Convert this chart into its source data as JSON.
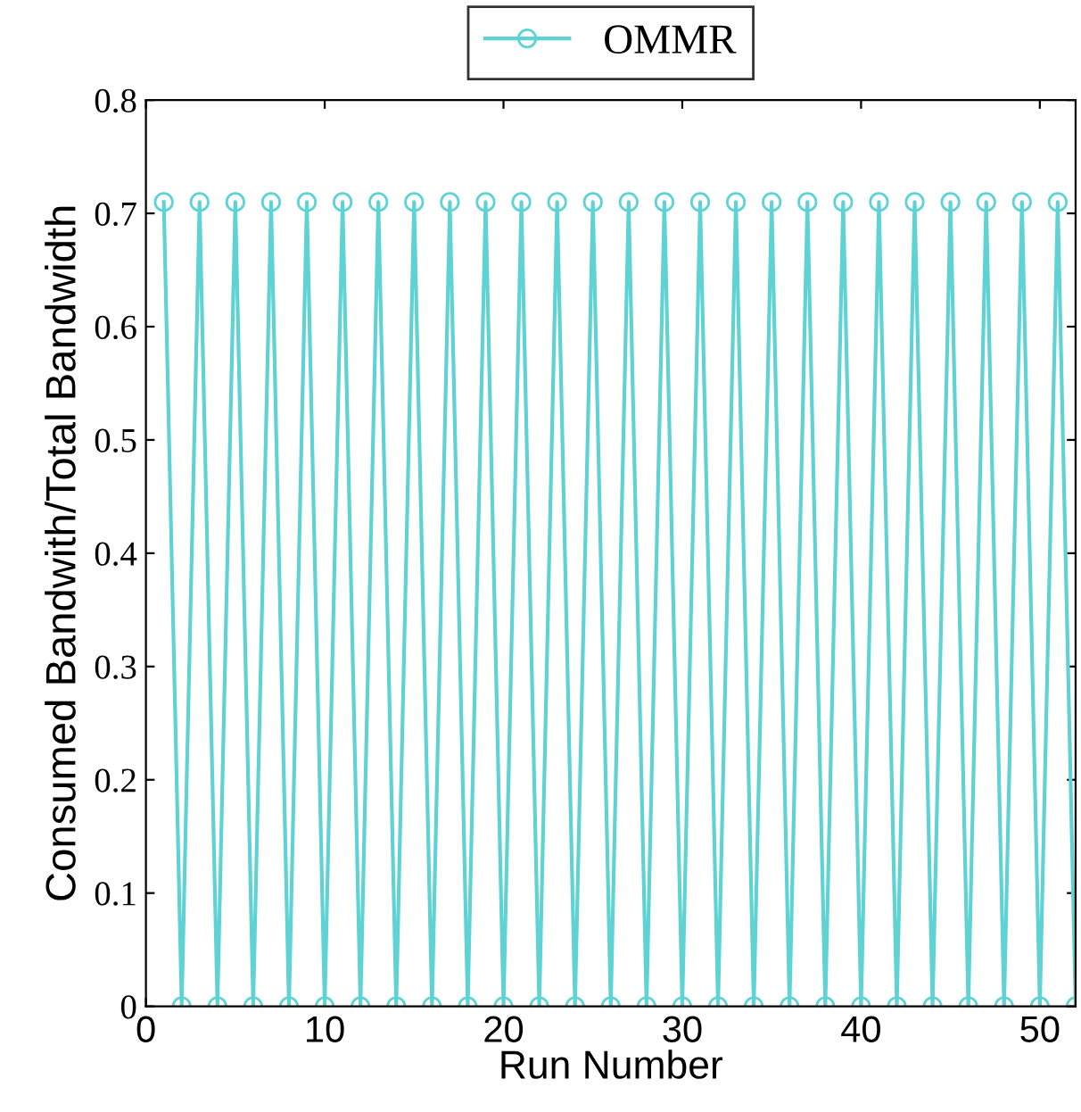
{
  "chart_data": {
    "type": "line",
    "xlabel": "Run Number",
    "ylabel": "Consumed Bandwith/Total Bandwidth",
    "x": [
      1,
      2,
      3,
      4,
      5,
      6,
      7,
      8,
      9,
      10,
      11,
      12,
      13,
      14,
      15,
      16,
      17,
      18,
      19,
      20,
      21,
      22,
      23,
      24,
      25,
      26,
      27,
      28,
      29,
      30,
      31,
      32,
      33,
      34,
      35,
      36,
      37,
      38,
      39,
      40,
      41,
      42,
      43,
      44,
      45,
      46,
      47,
      48,
      49,
      50,
      51,
      52
    ],
    "series": [
      {
        "name": "OMMR",
        "color": "#5fd3d3",
        "values": [
          0.71,
          0,
          0.71,
          0,
          0.71,
          0,
          0.71,
          0,
          0.71,
          0,
          0.71,
          0,
          0.71,
          0,
          0.71,
          0,
          0.71,
          0,
          0.71,
          0,
          0.71,
          0,
          0.71,
          0,
          0.71,
          0,
          0.71,
          0,
          0.71,
          0,
          0.71,
          0,
          0.71,
          0,
          0.71,
          0,
          0.71,
          0,
          0.71,
          0,
          0.71,
          0,
          0.71,
          0,
          0.71,
          0,
          0.71,
          0,
          0.71,
          0,
          0.71,
          0
        ]
      }
    ],
    "xlim": [
      0,
      52
    ],
    "xticks": [
      0,
      10,
      20,
      30,
      40,
      50
    ],
    "ylim": [
      0,
      0.8
    ],
    "yticks": [
      0,
      0.1,
      0.2,
      0.3,
      0.4,
      0.5,
      0.6,
      0.7,
      0.8
    ],
    "marker": "circle",
    "line_style": "solid",
    "legend": "top",
    "grid": false
  }
}
